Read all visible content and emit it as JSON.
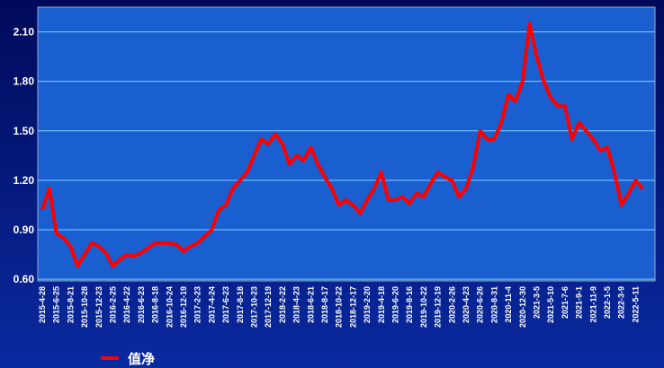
{
  "chart_data": {
    "type": "line",
    "categories": [
      "2015-4-28",
      null,
      "2015-6-25",
      null,
      "2015-8-21",
      null,
      "2015-10-28",
      null,
      "2015-12-23",
      null,
      "2016-2-25",
      null,
      "2016-4-22",
      null,
      "2016-6-23",
      null,
      "2016-8-18",
      null,
      "2016-10-24",
      null,
      "2016-12-19",
      null,
      "2017-2-23",
      null,
      "2017-4-24",
      null,
      "2017-6-23",
      null,
      "2017-8-18",
      null,
      "2017-10-23",
      null,
      "2017-12-19",
      null,
      "2018-2-22",
      null,
      "2018-4-23",
      null,
      "2018-6-21",
      null,
      "2018-8-17",
      null,
      "2018-10-22",
      null,
      "2018-12-17",
      null,
      "2019-2-20",
      null,
      "2019-4-18",
      null,
      "2019-6-20",
      null,
      "2019-8-16",
      null,
      "2019-10-22",
      null,
      "2019-12-19",
      null,
      "2020-2-26",
      null,
      "2020-4-23",
      null,
      "2020-6-26",
      null,
      "2020-8-31",
      null,
      "2020-11-4",
      null,
      "2020-12-30",
      null,
      "2021-3-5",
      null,
      "2021-5-10",
      null,
      "2021-7-6",
      null,
      "2021-9-1",
      null,
      "2021-11-9",
      null,
      "2022-1-5",
      null,
      "2022-3-9",
      null,
      "2022-5-11",
      null
    ],
    "series": [
      {
        "name": "值净",
        "color": "#ff0000",
        "values": [
          1.02,
          1.15,
          0.88,
          0.85,
          0.8,
          0.68,
          0.75,
          0.82,
          0.8,
          0.76,
          0.68,
          0.72,
          0.75,
          0.74,
          0.76,
          0.79,
          0.82,
          0.82,
          0.82,
          0.81,
          0.77,
          0.8,
          0.82,
          0.86,
          0.9,
          1.02,
          1.05,
          1.15,
          1.2,
          1.25,
          1.35,
          1.45,
          1.42,
          1.48,
          1.42,
          1.3,
          1.35,
          1.32,
          1.4,
          1.3,
          1.22,
          1.15,
          1.05,
          1.08,
          1.05,
          1.0,
          1.08,
          1.15,
          1.25,
          1.08,
          1.08,
          1.1,
          1.06,
          1.12,
          1.1,
          1.18,
          1.25,
          1.22,
          1.2,
          1.1,
          1.15,
          1.28,
          1.5,
          1.45,
          1.45,
          1.55,
          1.72,
          1.68,
          1.8,
          2.15,
          1.95,
          1.8,
          1.7,
          1.65,
          1.65,
          1.45,
          1.55,
          1.5,
          1.45,
          1.38,
          1.4,
          1.25,
          1.05,
          1.12,
          1.2,
          1.15
        ]
      }
    ],
    "ylim": [
      0.59,
      2.25
    ],
    "yticks": [
      {
        "value": 0.6,
        "label": "0.60"
      },
      {
        "value": 0.9,
        "label": "0.90"
      },
      {
        "value": 1.2,
        "label": "1.20"
      },
      {
        "value": 1.5,
        "label": "1.50"
      },
      {
        "value": 1.8,
        "label": "1.80"
      },
      {
        "value": 2.1,
        "label": "2.10"
      }
    ],
    "grid": true
  }
}
